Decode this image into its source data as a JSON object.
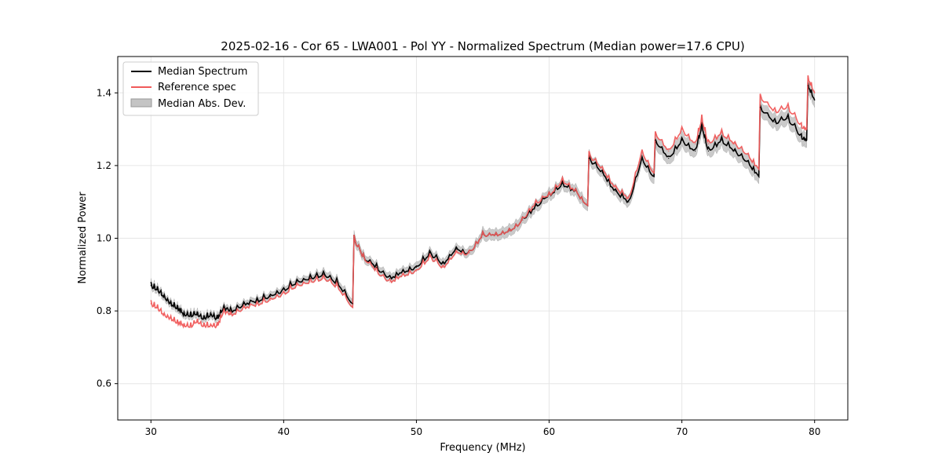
{
  "chart_data": {
    "type": "line",
    "title": "2025-02-16 - Cor 65 - LWA001 - Pol YY - Normalized Spectrum (Median power=17.6 CPU)",
    "xlabel": "Frequency (MHz)",
    "ylabel": "Normalized Power",
    "xlim": [
      27.5,
      82.5
    ],
    "ylim": [
      0.5,
      1.5
    ],
    "xticks": [
      30,
      40,
      50,
      60,
      70,
      80
    ],
    "yticks": [
      0.6,
      0.8,
      1.0,
      1.2,
      1.4
    ],
    "grid": true,
    "legend_position": "upper-left",
    "legend": [
      "Median Spectrum",
      "Reference spec",
      "Median Abs. Dev."
    ],
    "colors": {
      "median": "#000000",
      "reference": "#f05a5a",
      "mad": "#c4c4c4"
    },
    "series": [
      {
        "name": "Median Spectrum",
        "x": [
          30,
          30.5,
          31,
          31.5,
          32,
          32.5,
          33,
          33.5,
          34,
          34.5,
          35,
          35.5,
          36,
          37,
          38,
          39,
          40,
          41,
          42,
          43,
          44,
          45.2,
          45.3,
          46,
          47,
          48,
          49,
          50,
          51,
          52,
          53,
          54,
          55,
          56,
          57,
          58,
          59,
          60,
          61,
          62,
          62.9,
          63,
          64,
          65,
          66,
          67,
          67.9,
          68,
          69,
          70,
          71,
          71.5,
          72,
          73,
          74,
          75,
          75.8,
          75.9,
          77,
          78,
          79,
          79.4,
          79.5,
          80
        ],
        "values": [
          0.87,
          0.86,
          0.84,
          0.82,
          0.81,
          0.79,
          0.79,
          0.79,
          0.78,
          0.79,
          0.78,
          0.81,
          0.8,
          0.82,
          0.83,
          0.84,
          0.86,
          0.88,
          0.89,
          0.9,
          0.88,
          0.82,
          1.0,
          0.95,
          0.92,
          0.89,
          0.91,
          0.92,
          0.96,
          0.93,
          0.97,
          0.96,
          1.01,
          1.01,
          1.02,
          1.05,
          1.09,
          1.12,
          1.15,
          1.13,
          1.09,
          1.22,
          1.18,
          1.13,
          1.1,
          1.22,
          1.17,
          1.27,
          1.22,
          1.27,
          1.24,
          1.31,
          1.24,
          1.27,
          1.24,
          1.21,
          1.17,
          1.36,
          1.32,
          1.33,
          1.28,
          1.27,
          1.42,
          1.38
        ]
      },
      {
        "name": "Reference spec",
        "x": [
          30,
          30.5,
          31,
          31.5,
          32,
          32.5,
          33,
          33.5,
          34,
          34.5,
          35,
          35.5,
          36,
          37,
          38,
          39,
          40,
          41,
          42,
          43,
          44,
          45.2,
          45.3,
          46,
          47,
          48,
          49,
          50,
          51,
          52,
          53,
          54,
          55,
          56,
          57,
          58,
          59,
          60,
          61,
          62,
          62.9,
          63,
          64,
          65,
          66,
          67,
          67.9,
          68,
          69,
          70,
          71,
          71.5,
          72,
          73,
          74,
          75,
          75.8,
          75.9,
          77,
          78,
          79,
          79.4,
          79.5,
          80
        ],
        "values": [
          0.82,
          0.81,
          0.79,
          0.78,
          0.77,
          0.76,
          0.76,
          0.77,
          0.76,
          0.76,
          0.76,
          0.8,
          0.79,
          0.81,
          0.82,
          0.83,
          0.85,
          0.87,
          0.88,
          0.89,
          0.87,
          0.81,
          1.0,
          0.95,
          0.91,
          0.88,
          0.9,
          0.91,
          0.95,
          0.92,
          0.96,
          0.96,
          1.01,
          1.01,
          1.02,
          1.05,
          1.1,
          1.12,
          1.16,
          1.13,
          1.09,
          1.23,
          1.19,
          1.14,
          1.11,
          1.24,
          1.18,
          1.29,
          1.24,
          1.3,
          1.26,
          1.33,
          1.26,
          1.29,
          1.26,
          1.23,
          1.19,
          1.39,
          1.35,
          1.36,
          1.31,
          1.3,
          1.44,
          1.4
        ]
      }
    ],
    "mad_band": {
      "name": "Median Abs. Dev.",
      "halfwidth": [
        0.01,
        0.012,
        0.015,
        0.02
      ]
    }
  }
}
